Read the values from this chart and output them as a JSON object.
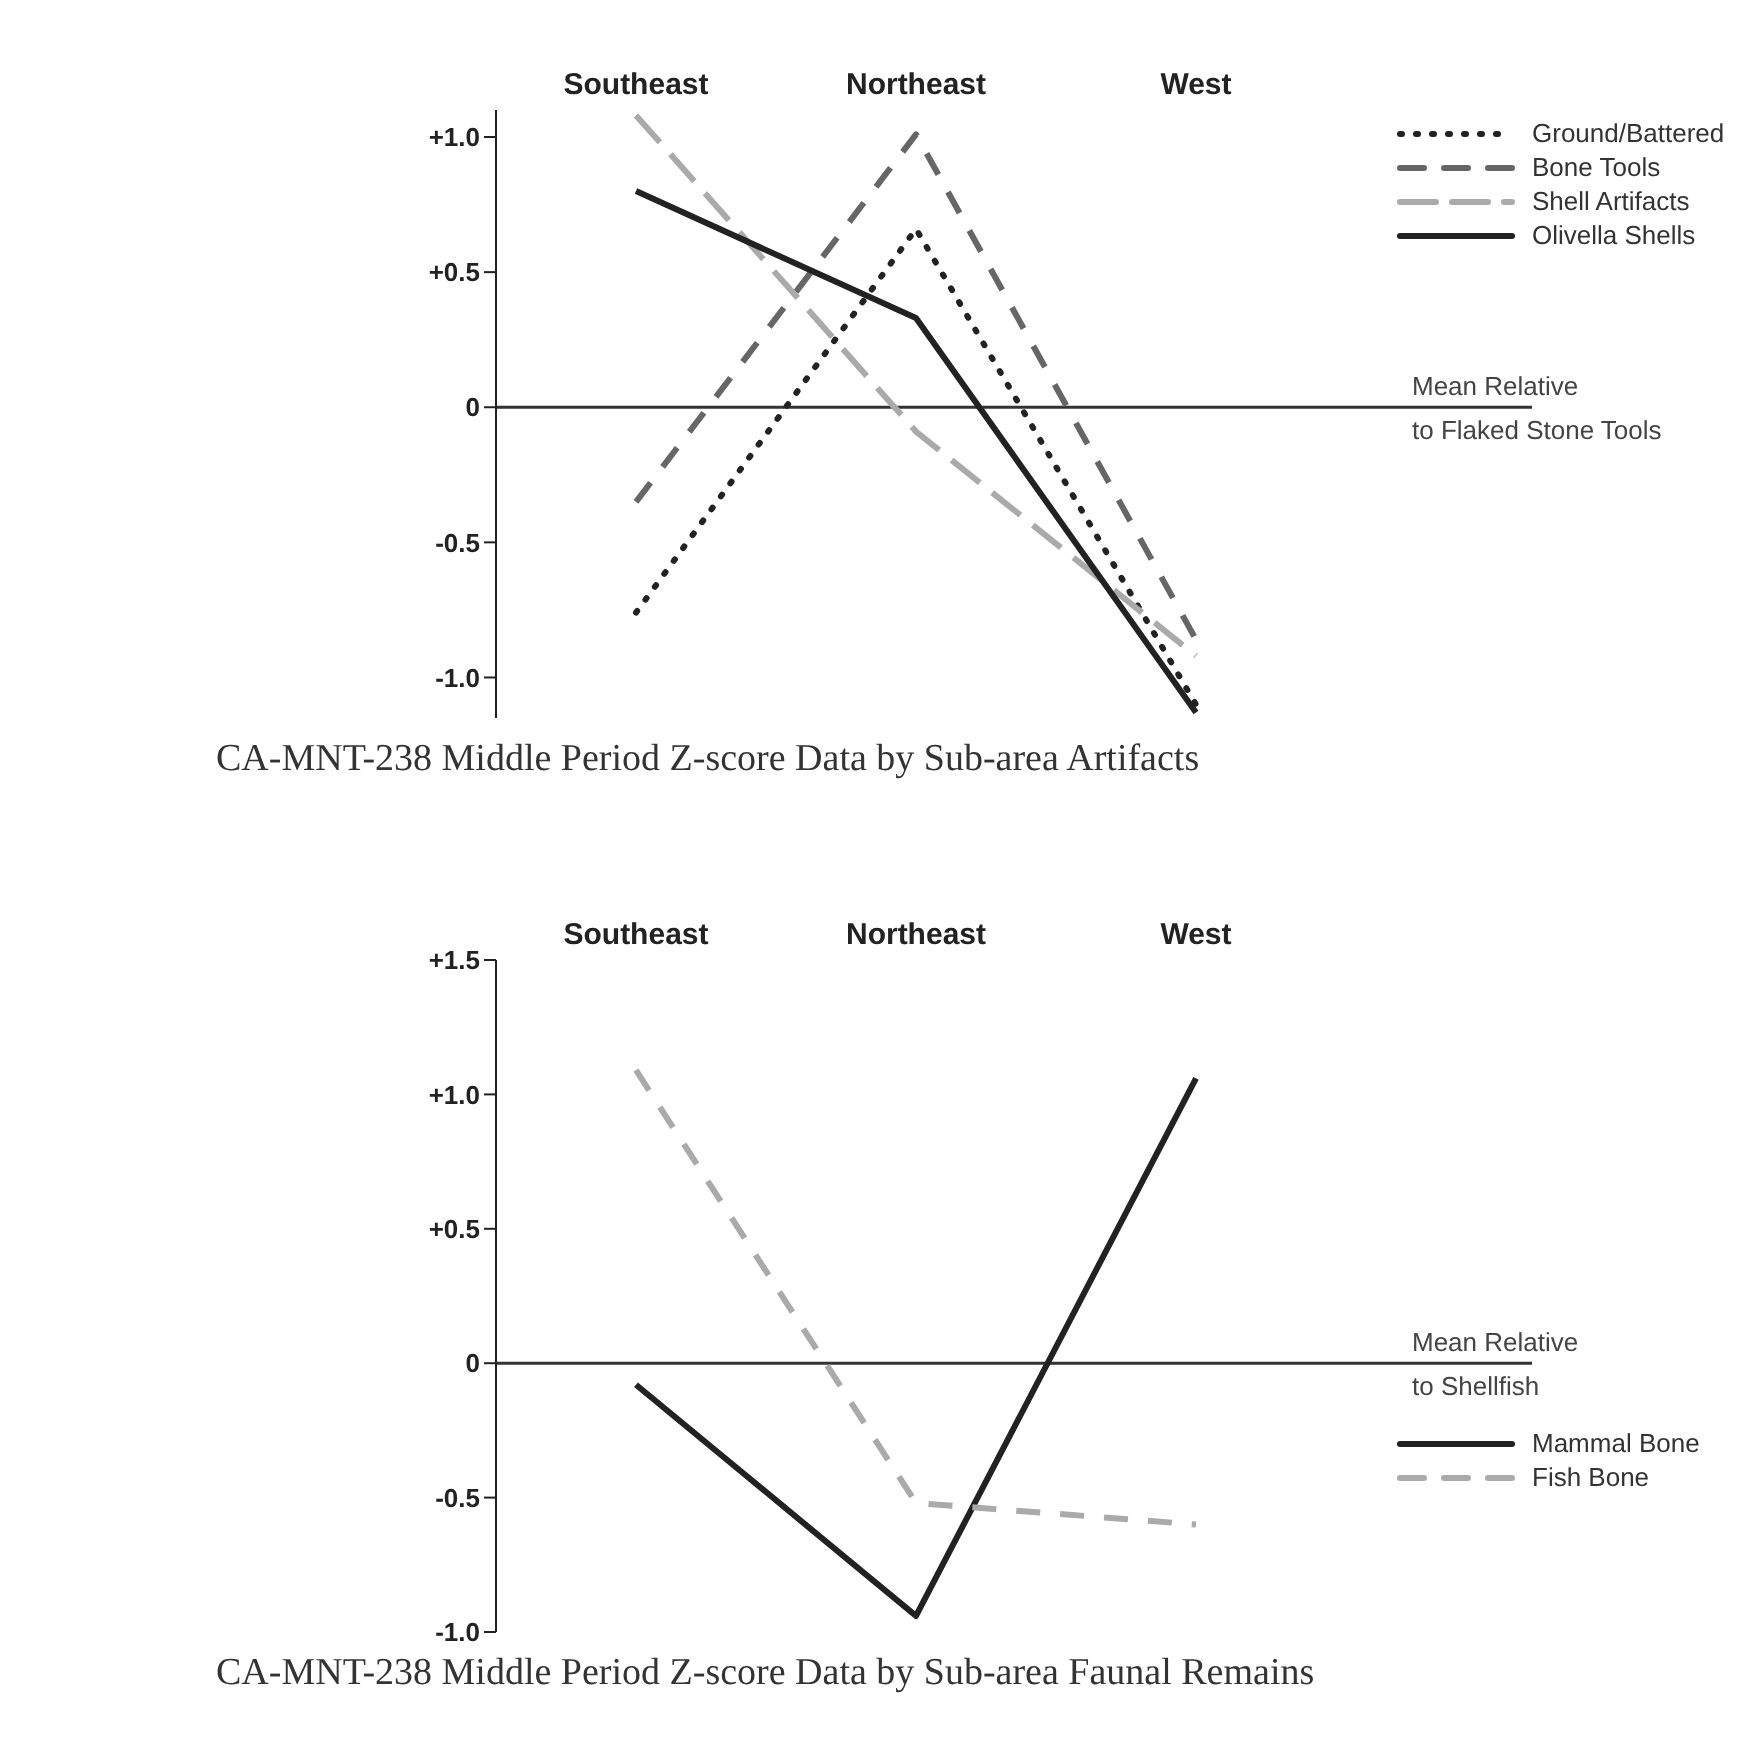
{
  "chart_data": [
    {
      "type": "line",
      "title": "CA-MNT-238 Middle Period Z-score Data by Sub-area Artifacts",
      "categories": [
        "Southeast",
        "Northeast",
        "West"
      ],
      "series": [
        {
          "name": "Ground/Battered",
          "color": "#222222",
          "line_style": "dotted",
          "values": [
            -0.76,
            0.66,
            -1.1
          ]
        },
        {
          "name": "Bone Tools",
          "color": "#666666",
          "line_style": "dashed",
          "values": [
            -0.35,
            1.01,
            -0.86
          ]
        },
        {
          "name": "Shell Artifacts",
          "color": "#aaaaaa",
          "line_style": "dashed",
          "values": [
            1.08,
            -0.09,
            -0.92
          ]
        },
        {
          "name": "Olivella Shells",
          "color": "#222222",
          "line_style": "solid",
          "values": [
            0.8,
            0.33,
            -1.13
          ]
        }
      ],
      "ylim": [
        -1.15,
        1.1
      ],
      "yticks": [
        {
          "value": -1,
          "label": "-1.0"
        },
        {
          "value": -0.5,
          "label": "-0.5"
        },
        {
          "value": 0,
          "label": "0"
        },
        {
          "value": 0.5,
          "label": "+0.5"
        },
        {
          "value": 1,
          "label": "+1.0"
        }
      ],
      "ref_lines": [
        {
          "axis": "y",
          "value": 0,
          "label": "Mean Relative\nto Flaked Stone Tools",
          "color": "#333333"
        }
      ],
      "grid": false,
      "legend": "top right",
      "marker": "none"
    },
    {
      "type": "line",
      "title": "CA-MNT-238 Middle Period Z-score Data by Sub-area Faunal Remains",
      "categories": [
        "Southeast",
        "Northeast",
        "West"
      ],
      "series": [
        {
          "name": "Mammal Bone",
          "color": "#222222",
          "line_style": "solid",
          "values": [
            -0.08,
            -0.94,
            1.06
          ]
        },
        {
          "name": "Fish Bone",
          "color": "#aaaaaa",
          "line_style": "dashed",
          "values": [
            1.09,
            -0.52,
            -0.6
          ]
        }
      ],
      "ylim": [
        -1,
        1.5
      ],
      "yticks": [
        {
          "value": -1,
          "label": "-1.0"
        },
        {
          "value": -0.5,
          "label": "-0.5"
        },
        {
          "value": 0,
          "label": "0"
        },
        {
          "value": 0.5,
          "label": "+0.5"
        },
        {
          "value": 1,
          "label": "+1.0"
        },
        {
          "value": 1.5,
          "label": "+1.5"
        }
      ],
      "ref_lines": [
        {
          "axis": "y",
          "value": 0,
          "label": "Mean Relative\nto Shellfish",
          "color": "#333333"
        }
      ],
      "grid": false,
      "legend": "bottom right",
      "marker": "none"
    }
  ]
}
